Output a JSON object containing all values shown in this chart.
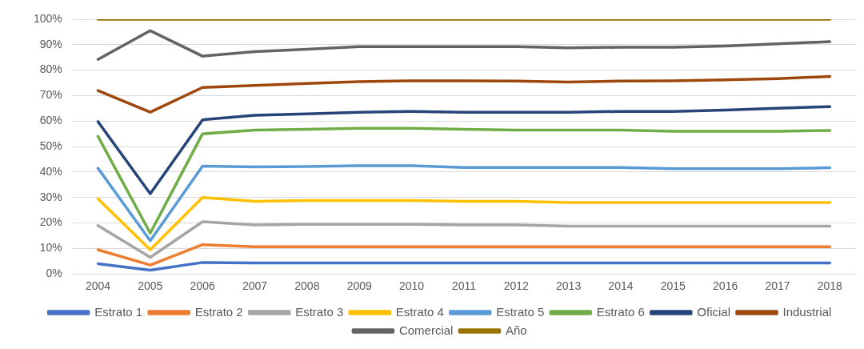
{
  "chart_data": {
    "type": "line",
    "categories": [
      "2004",
      "2005",
      "2006",
      "2007",
      "2008",
      "2009",
      "2010",
      "2011",
      "2012",
      "2013",
      "2014",
      "2015",
      "2016",
      "2017",
      "2018"
    ],
    "ylim": [
      0,
      100
    ],
    "yticks": [
      {
        "value": 0,
        "label": "0%"
      },
      {
        "value": 10,
        "label": "10%"
      },
      {
        "value": 20,
        "label": "20%"
      },
      {
        "value": 30,
        "label": "30%"
      },
      {
        "value": 40,
        "label": "40%"
      },
      {
        "value": 50,
        "label": "50%"
      },
      {
        "value": 60,
        "label": "60%"
      },
      {
        "value": 70,
        "label": "70%"
      },
      {
        "value": 80,
        "label": "80%"
      },
      {
        "value": 90,
        "label": "90%"
      },
      {
        "value": 100,
        "label": "100%"
      }
    ],
    "grid": "y",
    "legend": "bottom",
    "marker": "none",
    "line_style": "solid",
    "series": [
      {
        "name": "Estrato 1",
        "color": "#4472c4",
        "values": [
          4,
          1.5,
          4.5,
          4.3,
          4.3,
          4.3,
          4.3,
          4.3,
          4.3,
          4.3,
          4.3,
          4.3,
          4.3,
          4.3,
          4.3
        ]
      },
      {
        "name": "Estrato 2",
        "color": "#ed7d31",
        "values": [
          9.5,
          3.5,
          11.5,
          10.7,
          10.7,
          10.7,
          10.7,
          10.7,
          10.7,
          10.7,
          10.7,
          10.7,
          10.7,
          10.7,
          10.7
        ]
      },
      {
        "name": "Estrato 3",
        "color": "#a5a5a5",
        "values": [
          19,
          6.5,
          20.5,
          19.2,
          19.5,
          19.5,
          19.5,
          19.2,
          19.2,
          18.8,
          18.8,
          18.8,
          18.8,
          18.8,
          18.8
        ]
      },
      {
        "name": "Estrato 4",
        "color": "#ffc000",
        "values": [
          29.5,
          9.5,
          30,
          28.5,
          28.8,
          28.8,
          28.8,
          28.5,
          28.5,
          28,
          28,
          28,
          28,
          28,
          28
        ]
      },
      {
        "name": "Estrato 5",
        "color": "#5b9bd5",
        "values": [
          41.5,
          13,
          42.3,
          42,
          42.2,
          42.5,
          42.5,
          41.8,
          41.8,
          41.8,
          41.8,
          41.3,
          41.3,
          41.3,
          41.7
        ]
      },
      {
        "name": "Estrato 6",
        "color": "#70ad47",
        "values": [
          54,
          16,
          55,
          56.5,
          56.8,
          57.2,
          57.2,
          56.8,
          56.5,
          56.5,
          56.5,
          56,
          56,
          56,
          56.3
        ]
      },
      {
        "name": "Oficial",
        "color": "#264478",
        "values": [
          59.8,
          31.5,
          60.5,
          62.3,
          62.8,
          63.5,
          63.8,
          63.5,
          63.5,
          63.5,
          63.8,
          63.8,
          64.3,
          65,
          65.7
        ]
      },
      {
        "name": "Industrial",
        "color": "#9e480e",
        "values": [
          72,
          63.5,
          73.2,
          74,
          74.8,
          75.5,
          75.8,
          75.8,
          75.7,
          75.3,
          75.7,
          75.8,
          76.2,
          76.7,
          77.5
        ]
      },
      {
        "name": "Comercial",
        "color": "#636363",
        "values": [
          84.2,
          95.5,
          85.5,
          87.3,
          88.2,
          89.2,
          89.2,
          89.2,
          89.2,
          88.8,
          89,
          89,
          89.5,
          90.3,
          91.2
        ]
      },
      {
        "name": "Año",
        "color": "#997300",
        "values": [
          100,
          100,
          100,
          100,
          100,
          100,
          100,
          100,
          100,
          100,
          100,
          100,
          100,
          100,
          100
        ]
      }
    ]
  }
}
